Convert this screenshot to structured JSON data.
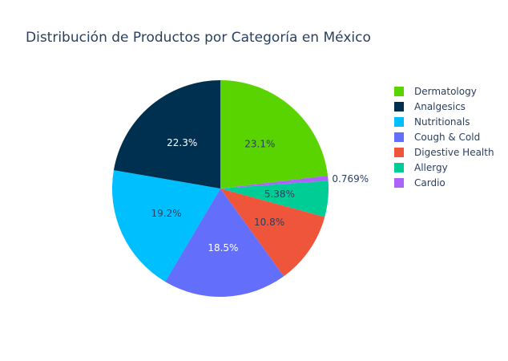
{
  "chart_data": {
    "type": "pie",
    "title": "Distribución de Productos por Categoría en México",
    "legend_position": "right",
    "slices": [
      {
        "label": "Dermatology",
        "percent": 23.1,
        "display": "23.1%",
        "color": "#5ad400",
        "label_color": "#2a3f5f"
      },
      {
        "label": "Cardio",
        "percent": 0.769,
        "display": "0.769%",
        "color": "#ab63fa",
        "label_color": "#2a3f5f"
      },
      {
        "label": "Allergy",
        "percent": 5.38,
        "display": "5.38%",
        "color": "#00cc96",
        "label_color": "#2a3f5f"
      },
      {
        "label": "Digestive Health",
        "percent": 10.8,
        "display": "10.8%",
        "color": "#ef553b",
        "label_color": "#2a3f5f"
      },
      {
        "label": "Cough & Cold",
        "percent": 18.5,
        "display": "18.5%",
        "color": "#636efa",
        "label_color": "#ffffff"
      },
      {
        "label": "Nutritionals",
        "percent": 19.2,
        "display": "19.2%",
        "color": "#00bfff",
        "label_color": "#2a3f5f"
      },
      {
        "label": "Analgesics",
        "percent": 22.3,
        "display": "22.3%",
        "color": "#00304f",
        "label_color": "#ffffff"
      }
    ],
    "legend": [
      {
        "label": "Dermatology",
        "color": "#5ad400"
      },
      {
        "label": "Analgesics",
        "color": "#00304f"
      },
      {
        "label": "Nutritionals",
        "color": "#00bfff"
      },
      {
        "label": "Cough & Cold",
        "color": "#636efa"
      },
      {
        "label": "Digestive Health",
        "color": "#ef553b"
      },
      {
        "label": "Allergy",
        "color": "#00cc96"
      },
      {
        "label": "Cardio",
        "color": "#ab63fa"
      }
    ]
  }
}
